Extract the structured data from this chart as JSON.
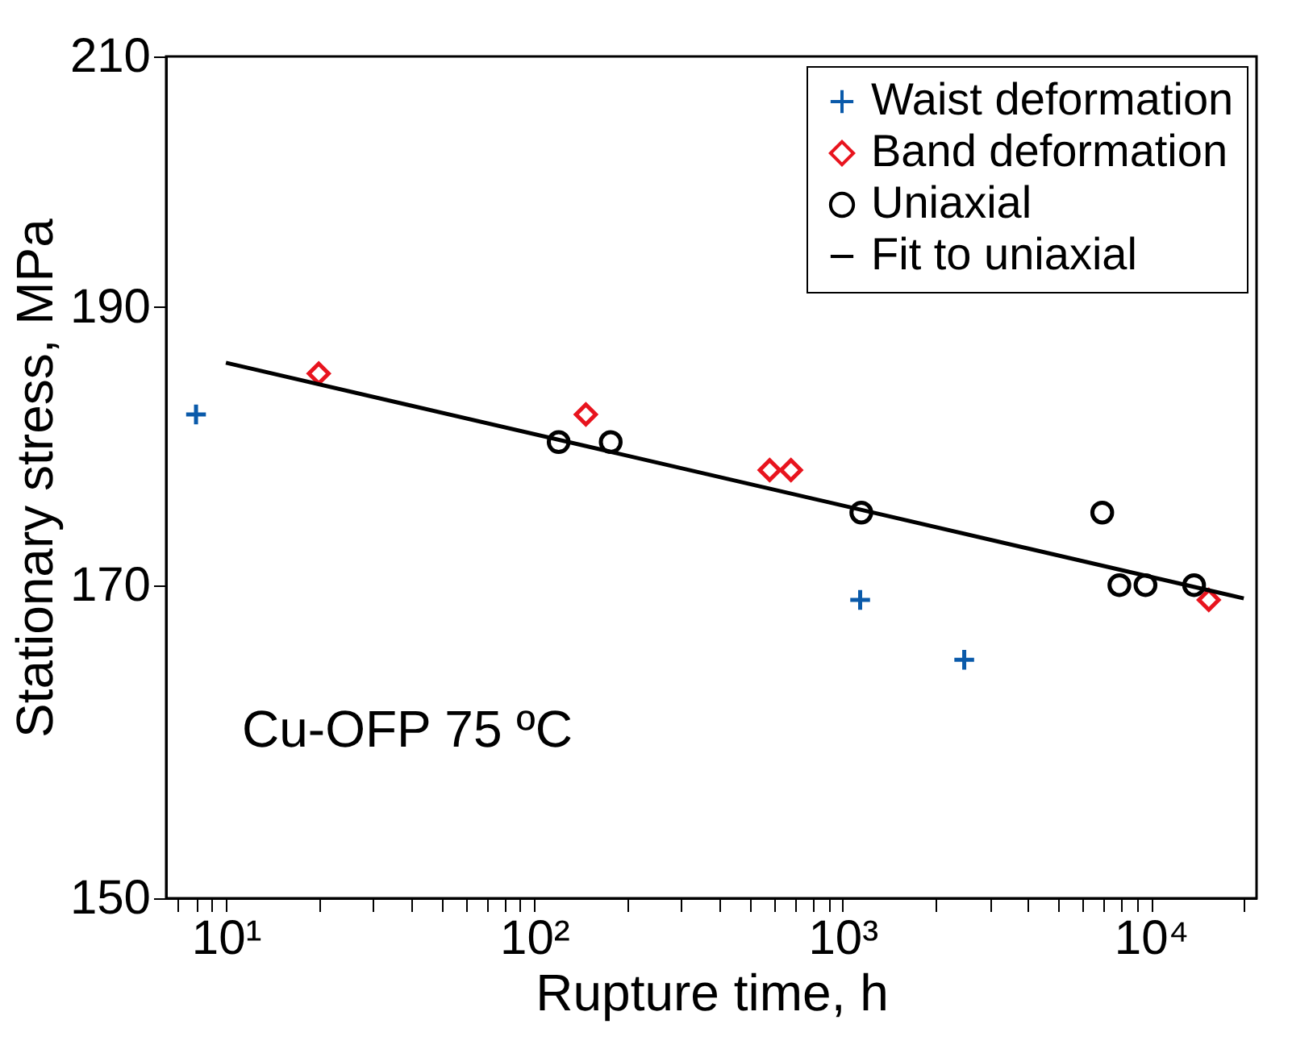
{
  "chart_data": {
    "type": "scatter",
    "xlabel": "Rupture time, h",
    "ylabel": "Stationary stress, MPa",
    "log": "xy",
    "grid": false,
    "legend": "top right",
    "xlim": [
      6.4,
      22000
    ],
    "ylim": [
      150,
      210
    ],
    "xticks": [
      {
        "value": 7,
        "label": null
      },
      {
        "value": 8,
        "label": null
      },
      {
        "value": 9,
        "label": null
      },
      {
        "value": 10,
        "label": "10¹"
      },
      {
        "value": 20,
        "label": null
      },
      {
        "value": 30,
        "label": null
      },
      {
        "value": 40,
        "label": null
      },
      {
        "value": 50,
        "label": null
      },
      {
        "value": 60,
        "label": null
      },
      {
        "value": 70,
        "label": null
      },
      {
        "value": 80,
        "label": null
      },
      {
        "value": 90,
        "label": null
      },
      {
        "value": 100,
        "label": "10²"
      },
      {
        "value": 200,
        "label": null
      },
      {
        "value": 300,
        "label": null
      },
      {
        "value": 400,
        "label": null
      },
      {
        "value": 500,
        "label": null
      },
      {
        "value": 600,
        "label": null
      },
      {
        "value": 700,
        "label": null
      },
      {
        "value": 800,
        "label": null
      },
      {
        "value": 900,
        "label": null
      },
      {
        "value": 1000,
        "label": "10³"
      },
      {
        "value": 2000,
        "label": null
      },
      {
        "value": 3000,
        "label": null
      },
      {
        "value": 4000,
        "label": null
      },
      {
        "value": 5000,
        "label": null
      },
      {
        "value": 6000,
        "label": null
      },
      {
        "value": 7000,
        "label": null
      },
      {
        "value": 8000,
        "label": null
      },
      {
        "value": 9000,
        "label": null
      },
      {
        "value": 10000,
        "label": "10⁴"
      },
      {
        "value": 20000,
        "label": null
      }
    ],
    "yticks": [
      150,
      170,
      190,
      210
    ],
    "annotations": [
      "Cu-OFP 75 ºC"
    ],
    "series": [
      {
        "name": "Waist deformation",
        "type": "scatter",
        "marker": "cross",
        "color": "#0a5aaa",
        "x": [
          8,
          1140,
          2480
        ],
        "values": [
          182,
          169,
          165
        ]
      },
      {
        "name": "Band deformation",
        "type": "scatter",
        "marker": "diamond",
        "color": "#e8141e",
        "x": [
          20,
          147,
          580,
          680,
          15400
        ],
        "values": [
          185,
          182,
          178,
          178,
          169
        ]
      },
      {
        "name": "Uniaxial",
        "type": "scatter",
        "marker": "circle",
        "color": "#000000",
        "x": [
          120,
          177,
          1150,
          6950,
          7900,
          9600,
          13800
        ],
        "values": [
          180,
          180,
          175,
          175,
          170,
          170,
          170
        ]
      },
      {
        "name": "Fit to uniaxial",
        "type": "line",
        "marker": "none",
        "line_style": "solid",
        "color": "#000000",
        "x": [
          10,
          20000
        ],
        "values": [
          185.8,
          169.1
        ]
      }
    ]
  }
}
